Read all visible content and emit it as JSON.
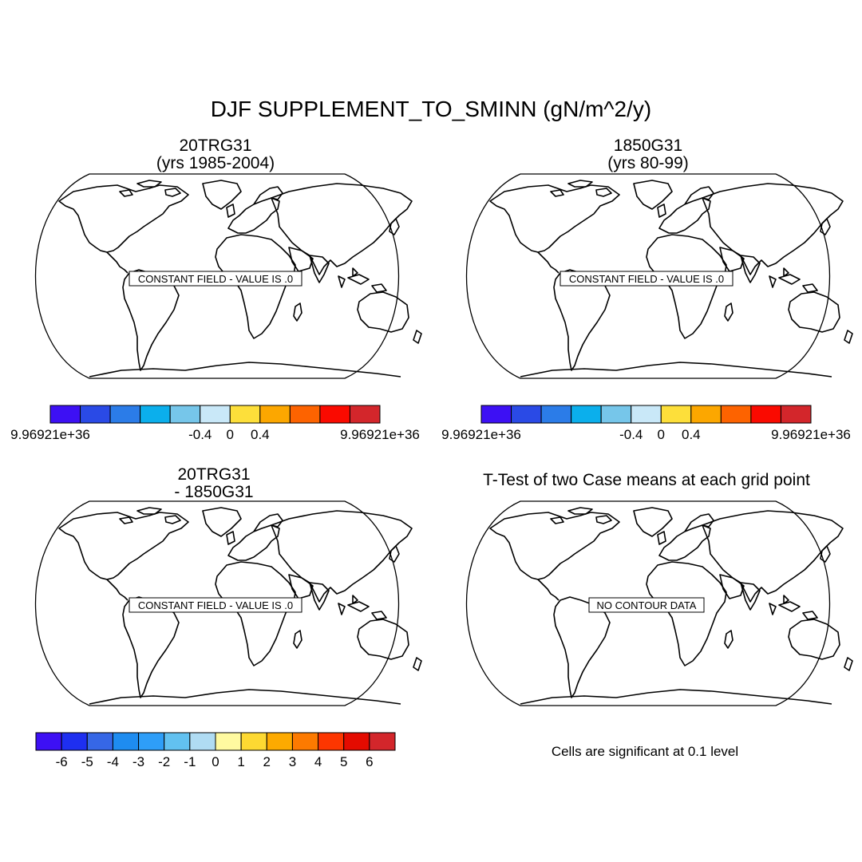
{
  "main_title": "DJF SUPPLEMENT_TO_SMINN (gN/m^2/y)",
  "panels": [
    {
      "title_line1": "20TRG31",
      "title_line2": "(yrs 1985-2004)",
      "note": "CONSTANT FIELD - VALUE IS .0"
    },
    {
      "title_line1": "1850G31",
      "title_line2": "(yrs 80-99)",
      "note": "CONSTANT FIELD - VALUE IS .0"
    },
    {
      "title_line1": "20TRG31",
      "title_line2": "- 1850G31",
      "note": "CONSTANT FIELD - VALUE IS .0"
    },
    {
      "title_line1": "T-Test of two Case means at each grid point",
      "title_line2": "",
      "note": "NO CONTOUR DATA"
    }
  ],
  "colorbar_top": {
    "colors": [
      "#3d10f4",
      "#2a4ae6",
      "#2b7ce8",
      "#0bafec",
      "#76c6ea",
      "#c9e8f8",
      "#fddf3a",
      "#fca700",
      "#fd6300",
      "#fa0a00",
      "#d3262b"
    ],
    "tick_labels": [
      "9.96921e+36",
      "-0.4",
      "0",
      "0.4",
      "9.96921e+36"
    ]
  },
  "colorbar_bottom": {
    "colors": [
      "#3d10f4",
      "#1e2ff0",
      "#3667e6",
      "#1e8cf0",
      "#2e9ef8",
      "#62c1f0",
      "#b0dcf3",
      "#fffaa0",
      "#fdd932",
      "#fdaa00",
      "#fd7a00",
      "#fd3600",
      "#e40b00",
      "#d3262b"
    ],
    "tick_labels": [
      "-6",
      "-5",
      "-4",
      "-3",
      "-2",
      "-1",
      "0",
      "1",
      "2",
      "3",
      "4",
      "5",
      "6"
    ]
  },
  "significance_note": "Cells are significant at 0.1 level"
}
